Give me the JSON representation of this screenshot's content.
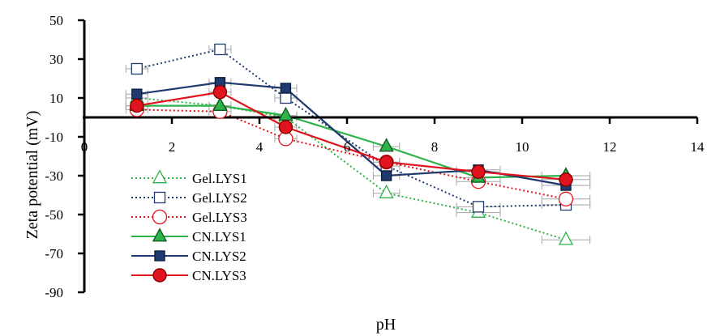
{
  "chart_data": {
    "type": "line",
    "xlabel": "pH",
    "ylabel": "Zeta potential (mV)",
    "xlim": [
      0,
      14
    ],
    "ylim": [
      -90,
      50
    ],
    "x_ticks": [
      0,
      2,
      4,
      6,
      8,
      10,
      12,
      14
    ],
    "y_ticks": [
      50,
      30,
      10,
      -10,
      -30,
      -50,
      -70,
      -90
    ],
    "x_tick_labels": [
      "0",
      "2",
      "4",
      "6",
      "8",
      "10",
      "12",
      "14"
    ],
    "y_tick_labels": [
      "50",
      "30",
      "10",
      "-10",
      "-30",
      "-50",
      "-70",
      "-90"
    ],
    "grid": false,
    "legend_position": "bottom-left",
    "series": [
      {
        "name": "Gel.LYS1",
        "color": "#2db34a",
        "line_style": "dotted",
        "marker": "triangle",
        "marker_fill": "open",
        "x": [
          1.2,
          3.1,
          4.6,
          6.9,
          9.0,
          11.0
        ],
        "y": [
          10,
          6,
          0,
          -39,
          -49,
          -63
        ]
      },
      {
        "name": "Gel.LYS2",
        "color": "#1f3a6e",
        "line_style": "dotted",
        "marker": "square",
        "marker_fill": "open",
        "x": [
          1.2,
          3.1,
          4.6,
          6.9,
          9.0,
          11.0
        ],
        "y": [
          25,
          35,
          10,
          -25,
          -46,
          -45
        ]
      },
      {
        "name": "Gel.LYS3",
        "color": "#e0141e",
        "line_style": "dotted",
        "marker": "circle",
        "marker_fill": "open",
        "x": [
          1.2,
          3.1,
          4.6,
          6.9,
          9.0,
          11.0
        ],
        "y": [
          4,
          3,
          -11,
          -23,
          -33,
          -42
        ]
      },
      {
        "name": "CN.LYS1",
        "color": "#2db34a",
        "line_style": "solid",
        "marker": "triangle",
        "marker_fill": "filled",
        "x": [
          1.2,
          3.1,
          4.6,
          6.9,
          9.0,
          11.0
        ],
        "y": [
          6,
          6,
          1,
          -15,
          -31,
          -30
        ]
      },
      {
        "name": "CN.LYS2",
        "color": "#1f3a6e",
        "line_style": "solid",
        "marker": "square",
        "marker_fill": "filled",
        "x": [
          1.2,
          3.1,
          4.6,
          6.9,
          9.0,
          11.0
        ],
        "y": [
          12,
          18,
          15,
          -30,
          -27,
          -35
        ]
      },
      {
        "name": "CN.LYS3",
        "color": "#e0141e",
        "line_style": "solid",
        "marker": "circle",
        "marker_fill": "filled",
        "x": [
          1.2,
          3.1,
          4.6,
          6.9,
          9.0,
          11.0
        ],
        "y": [
          6,
          13,
          -5,
          -23,
          -28,
          -32
        ]
      }
    ],
    "x_error": [
      0.25,
      0.25,
      0.25,
      0.3,
      0.5,
      0.55
    ],
    "error_bar_color": "#a6a6a6"
  }
}
